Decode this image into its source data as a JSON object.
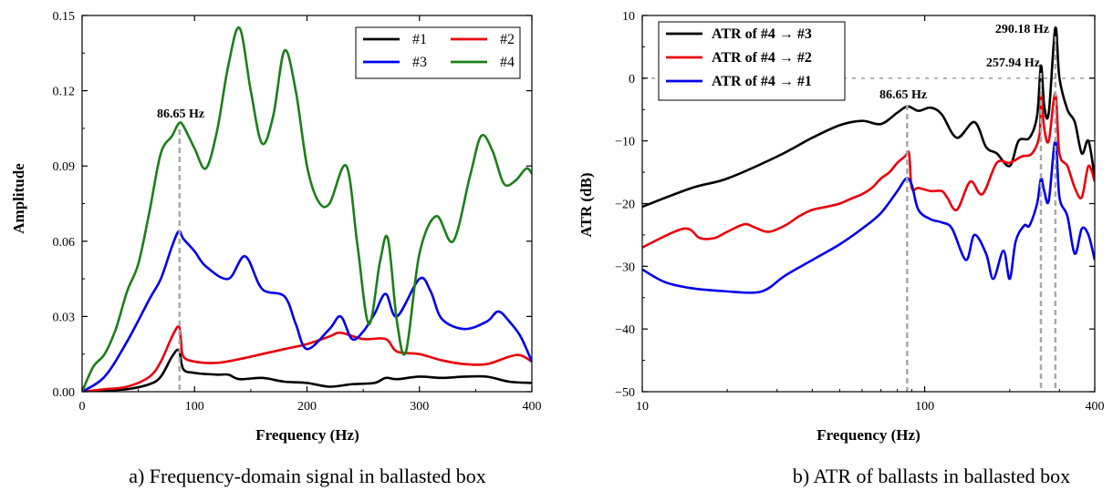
{
  "chart_data": [
    {
      "type": "line",
      "caption": "a) Frequency-domain signal in ballasted box",
      "xlabel": "Frequency (Hz)",
      "ylabel": "Amplitude",
      "xlim": [
        0,
        400
      ],
      "ylim": [
        0,
        0.15
      ],
      "x_ticks": [
        0,
        100,
        200,
        300,
        400
      ],
      "x_tick_labels": [
        "0",
        "100",
        "200",
        "300",
        "400"
      ],
      "y_ticks": [
        0,
        0.03,
        0.06,
        0.09,
        0.12,
        0.15
      ],
      "y_tick_labels": [
        "0.00",
        "0.03",
        "0.06",
        "0.09",
        "0.12",
        "0.15"
      ],
      "legend_position": "top-right",
      "annotations": [
        {
          "text": "86.65 Hz",
          "x": 86.65
        }
      ],
      "series": [
        {
          "name": "#1",
          "color": "#000000",
          "x": [
            0,
            20,
            40,
            60,
            70,
            80,
            86,
            90,
            100,
            120,
            130,
            140,
            160,
            180,
            200,
            220,
            240,
            260,
            270,
            280,
            300,
            320,
            340,
            360,
            380,
            400
          ],
          "y": [
            0,
            0.0005,
            0.001,
            0.003,
            0.006,
            0.014,
            0.0165,
            0.009,
            0.0075,
            0.0068,
            0.0068,
            0.005,
            0.0055,
            0.004,
            0.0035,
            0.002,
            0.003,
            0.0035,
            0.0055,
            0.005,
            0.006,
            0.0055,
            0.006,
            0.006,
            0.004,
            0.0035
          ]
        },
        {
          "name": "#2",
          "color": "#e8000b",
          "x": [
            0,
            20,
            40,
            60,
            70,
            80,
            86,
            88,
            90,
            100,
            120,
            140,
            160,
            180,
            200,
            220,
            230,
            250,
            270,
            280,
            300,
            320,
            340,
            360,
            380,
            390,
            400
          ],
          "y": [
            0,
            0.001,
            0.002,
            0.006,
            0.012,
            0.022,
            0.026,
            0.02,
            0.014,
            0.012,
            0.0115,
            0.013,
            0.015,
            0.017,
            0.019,
            0.022,
            0.0235,
            0.021,
            0.021,
            0.016,
            0.015,
            0.0125,
            0.011,
            0.011,
            0.014,
            0.0145,
            0.012
          ]
        },
        {
          "name": "#3",
          "color": "#0000e8",
          "x": [
            0,
            20,
            40,
            60,
            70,
            80,
            86,
            90,
            100,
            110,
            130,
            145,
            160,
            180,
            190,
            200,
            220,
            230,
            240,
            250,
            260,
            270,
            280,
            300,
            310,
            320,
            340,
            360,
            370,
            380,
            390,
            400
          ],
          "y": [
            0,
            0.006,
            0.02,
            0.037,
            0.045,
            0.058,
            0.064,
            0.061,
            0.056,
            0.05,
            0.045,
            0.054,
            0.041,
            0.038,
            0.027,
            0.017,
            0.025,
            0.03,
            0.021,
            0.024,
            0.031,
            0.039,
            0.03,
            0.045,
            0.04,
            0.029,
            0.025,
            0.028,
            0.032,
            0.028,
            0.022,
            0.012
          ]
        },
        {
          "name": "#4",
          "color": "#1a7f1a",
          "x": [
            0,
            10,
            20,
            30,
            40,
            50,
            60,
            70,
            80,
            86,
            90,
            100,
            110,
            120,
            130,
            140,
            150,
            160,
            170,
            180,
            190,
            200,
            210,
            220,
            235,
            245,
            255,
            265,
            272,
            280,
            288,
            300,
            315,
            330,
            345,
            355,
            365,
            375,
            385,
            395,
            400
          ],
          "y": [
            0,
            0.01,
            0.015,
            0.025,
            0.04,
            0.051,
            0.072,
            0.095,
            0.102,
            0.107,
            0.106,
            0.097,
            0.089,
            0.104,
            0.13,
            0.145,
            0.12,
            0.099,
            0.11,
            0.136,
            0.12,
            0.09,
            0.076,
            0.075,
            0.09,
            0.058,
            0.027,
            0.052,
            0.061,
            0.028,
            0.016,
            0.055,
            0.07,
            0.06,
            0.086,
            0.102,
            0.096,
            0.083,
            0.084,
            0.089,
            0.087
          ]
        }
      ]
    },
    {
      "type": "line",
      "caption": "b) ATR of ballasts in ballasted box",
      "xlabel": "Frequency (Hz)",
      "ylabel": "ATR (dB)",
      "xscale": "log",
      "xlim": [
        10,
        400
      ],
      "ylim": [
        -50,
        10
      ],
      "x_ticks": [
        10,
        100,
        400
      ],
      "x_tick_labels": [
        "10",
        "100",
        "400"
      ],
      "y_ticks": [
        -50,
        -40,
        -30,
        -20,
        -10,
        0,
        10
      ],
      "y_tick_labels": [
        "−50",
        "−40",
        "−30",
        "−20",
        "−10",
        "0",
        "10"
      ],
      "legend_position": "top-left",
      "annotations": [
        {
          "text": "86.65 Hz",
          "x": 86.65
        },
        {
          "text": "257.94 Hz",
          "x": 257.94
        },
        {
          "text": "290.18 Hz",
          "x": 290.18
        }
      ],
      "series": [
        {
          "name": "ATR of #4 → #3",
          "color": "#000000",
          "x": [
            10,
            15,
            20,
            30,
            40,
            50,
            60,
            70,
            80,
            87,
            95,
            105,
            115,
            130,
            150,
            165,
            180,
            200,
            215,
            235,
            250,
            258,
            265,
            275,
            290,
            300,
            320,
            340,
            360,
            380,
            400
          ],
          "y": [
            -20.5,
            -17.5,
            -16,
            -12.5,
            -9.5,
            -7.5,
            -6.8,
            -7.3,
            -5.5,
            -4.5,
            -5.2,
            -4.7,
            -5.8,
            -9.5,
            -7,
            -11,
            -12,
            -14,
            -10,
            -9.5,
            -6,
            2,
            -4.5,
            -5.5,
            8,
            0,
            -5,
            -7,
            -12,
            -10,
            -16
          ]
        },
        {
          "name": "ATR of #4 → #2",
          "color": "#e8000b",
          "x": [
            10,
            14,
            16,
            18,
            20,
            23,
            25,
            28,
            32,
            36,
            40,
            45,
            50,
            55,
            60,
            65,
            70,
            75,
            80,
            85,
            88,
            90,
            95,
            105,
            115,
            120,
            130,
            145,
            160,
            180,
            200,
            220,
            240,
            255,
            258,
            265,
            275,
            290,
            300,
            320,
            340,
            360,
            380,
            400
          ],
          "y": [
            -27,
            -24,
            -25.5,
            -25.5,
            -24.5,
            -23.3,
            -23.8,
            -24.5,
            -23.5,
            -22,
            -21,
            -20.5,
            -20,
            -19.2,
            -18.5,
            -17.5,
            -16,
            -15,
            -13.5,
            -12.5,
            -12,
            -17.5,
            -17.5,
            -18,
            -18,
            -19,
            -21,
            -16.5,
            -18.5,
            -13.5,
            -13.5,
            -12.5,
            -12,
            -9,
            -2.5,
            -8,
            -10,
            -2.5,
            -12,
            -14,
            -17.5,
            -19,
            -14,
            -16.5
          ]
        },
        {
          "name": "ATR of #4 → #1",
          "color": "#0000e8",
          "x": [
            10,
            12,
            15,
            20,
            25,
            28,
            32,
            40,
            50,
            60,
            70,
            80,
            86,
            90,
            95,
            105,
            115,
            125,
            140,
            150,
            165,
            175,
            190,
            200,
            210,
            225,
            235,
            250,
            258,
            265,
            275,
            290,
            300,
            320,
            340,
            360,
            380,
            400
          ],
          "y": [
            -30.5,
            -32.5,
            -33.5,
            -34,
            -34.2,
            -33.5,
            -31.5,
            -29,
            -26.5,
            -24,
            -21.5,
            -18,
            -16,
            -17,
            -21,
            -22.5,
            -23,
            -24,
            -29,
            -25,
            -28,
            -32,
            -27.5,
            -32,
            -26,
            -23.5,
            -23.5,
            -20,
            -16,
            -18,
            -19.5,
            -10,
            -19,
            -22,
            -28,
            -24,
            -25,
            -29
          ]
        }
      ]
    }
  ]
}
